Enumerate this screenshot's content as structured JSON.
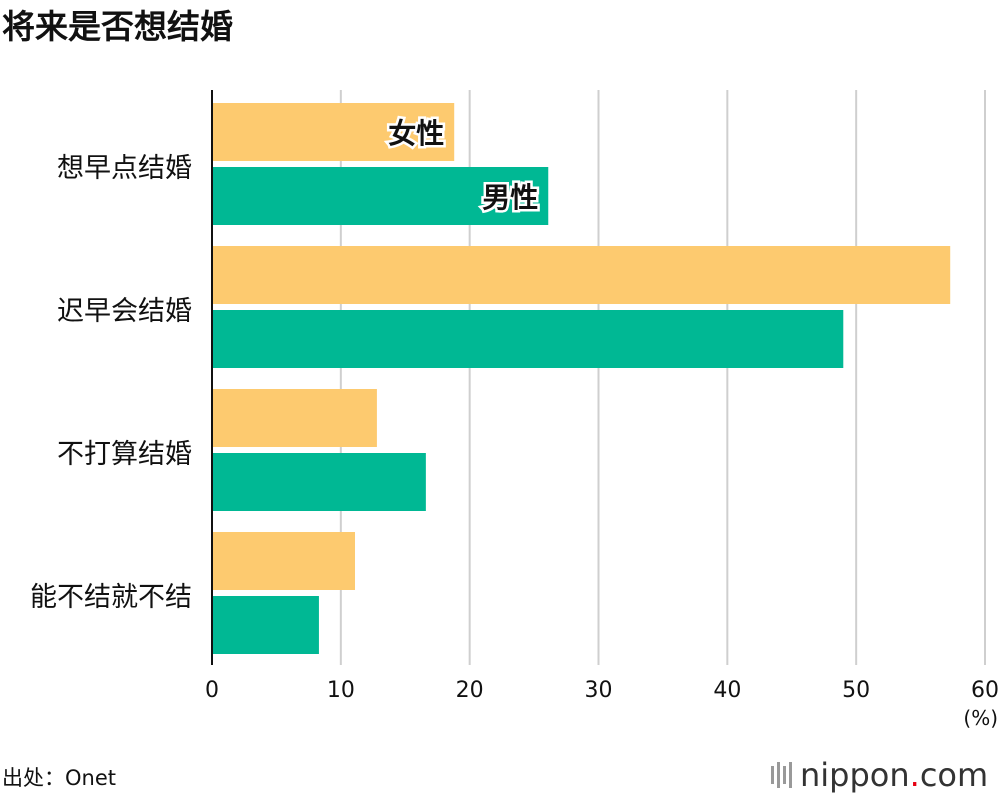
{
  "chart_data": {
    "type": "bar",
    "orientation": "horizontal",
    "title": "将来是否想结婚",
    "categories": [
      "想早点结婚",
      "迟早会结婚",
      "不打算结婚",
      "能不结就不结"
    ],
    "series": [
      {
        "name": "女性",
        "color": "#FDCA6F",
        "values": [
          18.8,
          57.3,
          12.8,
          11.1
        ]
      },
      {
        "name": "男性",
        "color": "#00B894",
        "values": [
          26.1,
          49.0,
          16.6,
          8.3
        ]
      }
    ],
    "xlim": [
      0,
      60
    ],
    "xticks": [
      0,
      10,
      20,
      30,
      40,
      50,
      60
    ],
    "xunit": "(%)",
    "grid": true,
    "legend": "inline-labels-on-first-bars"
  },
  "source": "出处：Onet",
  "logo": "nippon.com"
}
